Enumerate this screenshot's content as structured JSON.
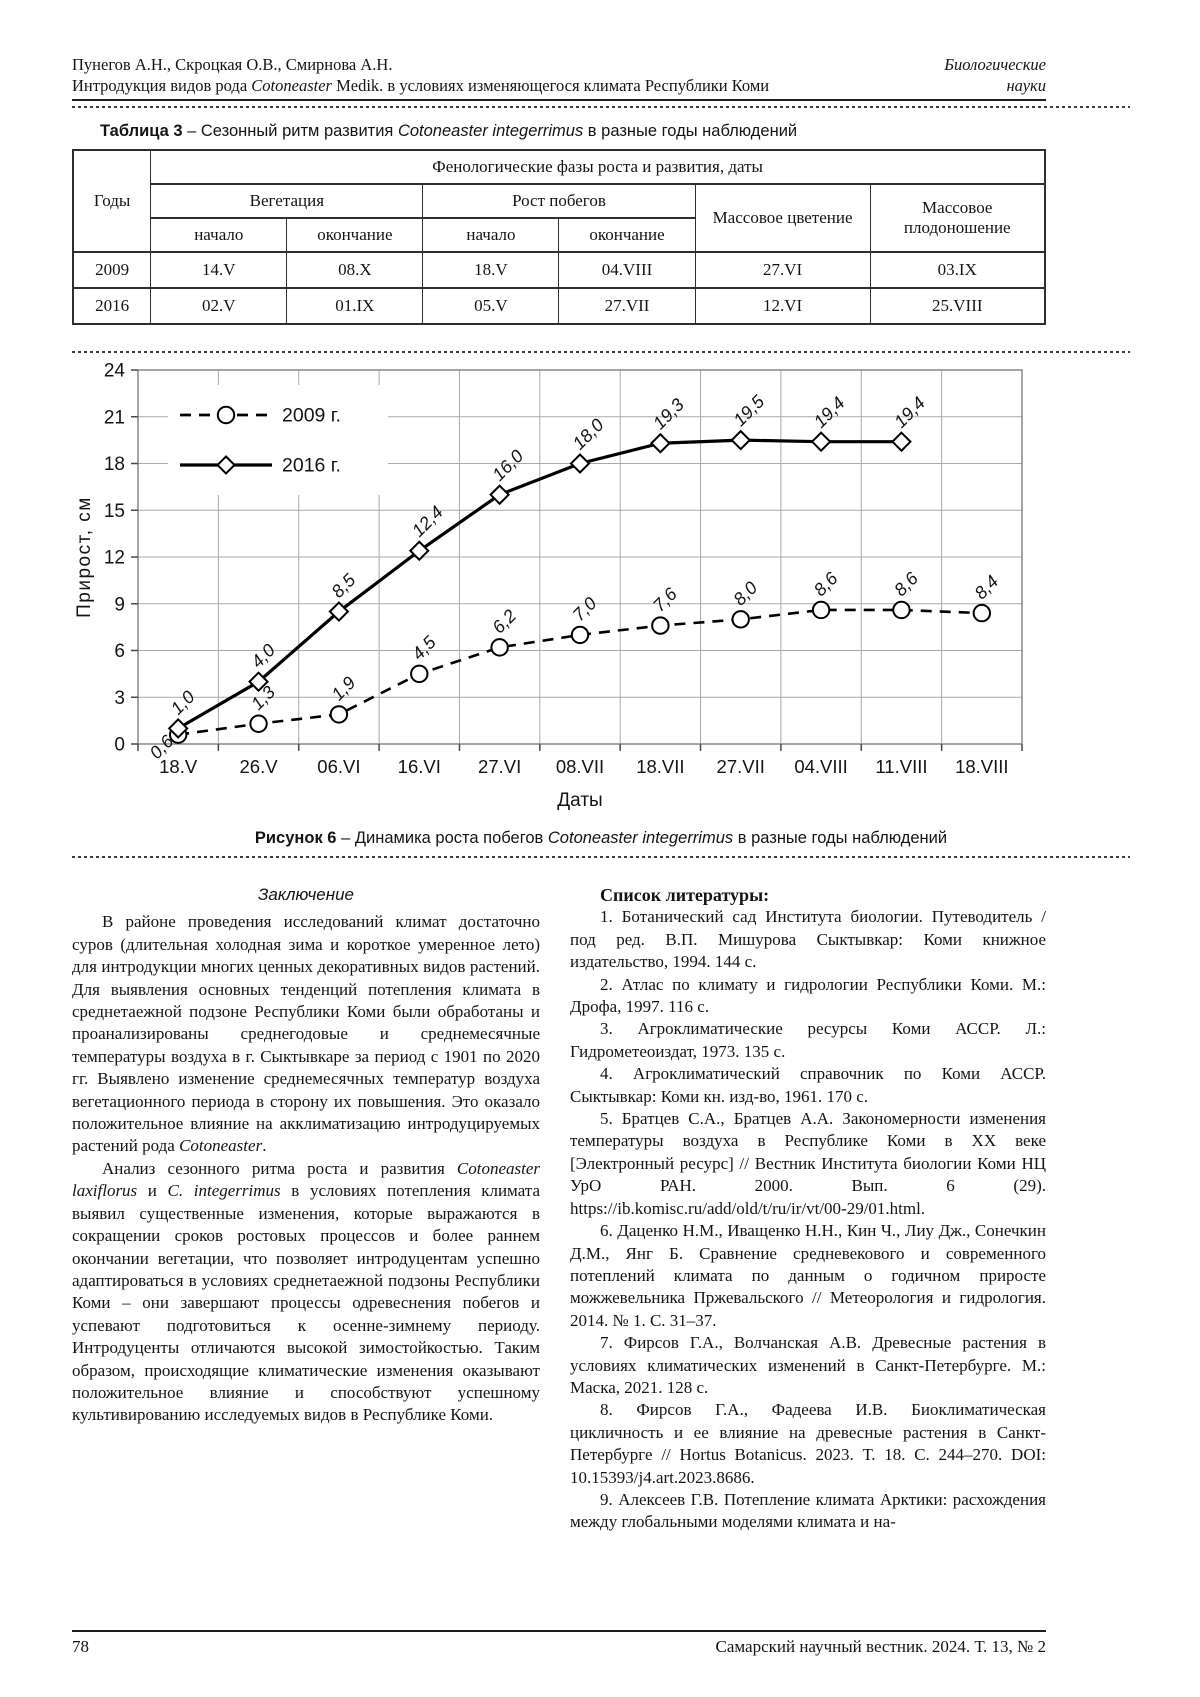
{
  "header": {
    "authors": "Пунегов А.Н., Скроцкая О.В., Смирнова А.Н.",
    "article_title": [
      {
        "t": "Интродукция видов рода "
      },
      {
        "t": "Cotoneaster",
        "s": "i"
      },
      {
        "t": " Medik. в условиях изменяющегося климата Республики Коми"
      }
    ],
    "section_line1": "Биологические",
    "section_line2": "науки"
  },
  "table": {
    "title": [
      {
        "t": "Таблица 3",
        "s": "b"
      },
      {
        "t": " – Сезонный ритм развития "
      },
      {
        "t": "Cotoneaster integerrimus",
        "s": "i"
      },
      {
        "t": " в разные годы наблюдений"
      }
    ],
    "col_year": "Годы",
    "phases_header": "Фенологические фазы роста и развития, даты",
    "vegetation": "Вегетация",
    "shoot_growth": "Рост побегов",
    "mass_flowering": "Массовое цветение",
    "mass_fruiting": "Массовое плодоношение",
    "start_label": "начало",
    "end_label": "окончание",
    "rows": [
      {
        "year": "2009",
        "cells": [
          "14.V",
          "08.X",
          "18.V",
          "04.VIII",
          "27.VI",
          "03.IX"
        ]
      },
      {
        "year": "2016",
        "cells": [
          "02.V",
          "01.IX",
          "05.V",
          "27.VII",
          "12.VI",
          "25.VIII"
        ]
      }
    ]
  },
  "chart_data": {
    "type": "line",
    "categories": [
      "18.V",
      "26.V",
      "06.VI",
      "16.VI",
      "27.VI",
      "08.VII",
      "18.VII",
      "27.VII",
      "04.VIII",
      "11.VIII",
      "18.VIII"
    ],
    "series": [
      {
        "name": "2009 г.",
        "marker": "circle",
        "line_style": "dashed",
        "values": [
          0.6,
          1.3,
          1.9,
          4.5,
          6.2,
          7.0,
          7.6,
          8.0,
          8.6,
          8.6,
          8.4
        ],
        "labels": [
          "0,6",
          "1,3",
          "1,9",
          "4,5",
          "6,2",
          "7,0",
          "7,6",
          "8,0",
          "8,6",
          "8,6",
          "8,4"
        ]
      },
      {
        "name": "2016 г.",
        "marker": "diamond",
        "line_style": "solid",
        "values": [
          1.0,
          4.0,
          8.5,
          12.4,
          16.0,
          18.0,
          19.3,
          19.5,
          19.4,
          19.4
        ],
        "labels": [
          "1,0",
          "4,0",
          "8,5",
          "12,4",
          "16,0",
          "18,0",
          "19,3",
          "19,5",
          "19,4",
          "19,4"
        ]
      }
    ],
    "title": "",
    "xlabel": "Даты",
    "ylabel": "Прирост,  см",
    "ylim": [
      0,
      24
    ],
    "ytick_step": 3,
    "grid": true,
    "legend_position": "top-left",
    "colors": {
      "line": "#000000",
      "grid": "#a9a9a9",
      "frame": "#888888",
      "marker_fill": "#ffffff"
    }
  },
  "figure": {
    "caption": [
      {
        "t": "Рисунок 6",
        "s": "b"
      },
      {
        "t": " – Динамика роста побегов "
      },
      {
        "t": "Cotoneaster integerrimus",
        "s": "i"
      },
      {
        "t": " в разные годы наблюдений"
      }
    ]
  },
  "conclusion": {
    "heading": "Заключение",
    "paragraphs": [
      [
        {
          "t": "В районе проведения исследований климат достаточно суров (длительная холодная зима и короткое умеренное лето) для интродукции многих ценных декоративных видов растений. Для выявления основных тенденций потепления климата в среднетаежной подзоне Республики Коми были обработаны и проанализированы среднегодовые и среднемесячные температуры воздуха в г. Сыктывкаре за период с 1901 по 2020 гг. Выявлено изменение среднемесячных температур воздуха вегетационного периода в сторону их повышения. Это оказало положительное влияние на акклиматизацию интродуцируемых растений рода "
        },
        {
          "t": "Cotoneaster",
          "s": "i"
        },
        {
          "t": "."
        }
      ],
      [
        {
          "t": "Анализ сезонного ритма роста и развития "
        },
        {
          "t": "Cotoneaster laxiflorus",
          "s": "i"
        },
        {
          "t": " и "
        },
        {
          "t": "C. integerrimus",
          "s": "i"
        },
        {
          "t": " в условиях потепления климата выявил существенные изменения, которые выражаются в сокращении сроков ростовых процессов и более раннем окончании вегетации, что позволяет интродуцентам успешно адаптироваться в условиях среднетаежной подзоны Республики Коми – они завершают процессы одревеснения побегов и успевают подготовиться к осенне-зимнему периоду. Интродуценты отличаются высокой зимостойкостью. Таким образом, происходящие климатические изменения оказывают положительное влияние и способствуют успешному культивированию исследуемых видов в Республике Коми."
        }
      ]
    ]
  },
  "references": {
    "heading": "Список литературы:",
    "items": [
      "1. Ботанический сад Института биологии. Путеводитель / под ред. В.П. Мишурова Сыктывкар: Коми книжное издательство, 1994. 144 с.",
      "2. Атлас по климату и гидрологии Республики Коми. М.: Дрофа, 1997. 116 с.",
      "3. Агроклиматические ресурсы Коми АССР. Л.: Гидрометеоиздат, 1973. 135 с.",
      "4. Агроклиматический справочник по Коми АССР. Сыктывкар: Коми кн. изд-во, 1961. 170 с.",
      "5. Братцев С.А., Братцев А.А. Закономерности изменения температуры воздуха в Республике Коми в XX веке [Электронный ресурс] // Вестник Института биологии Коми НЦ УрО РАН. 2000. Вып. 6 (29). https://ib.komisc.ru/add/old/t/ru/ir/vt/00-29/01.html.",
      "6. Даценко Н.М., Иващенко Н.Н., Кин Ч., Лиу Дж., Сонечкин Д.М., Янг Б. Сравнение средневекового и современного потеплений климата по данным о годичном приросте можжевельника Пржевальского // Метеорология и гидрология. 2014. № 1. С. 31–37.",
      "7. Фирсов Г.А., Волчанская А.В. Древесные растения в условиях климатических изменений в Санкт-Петербурге. М.: Маска, 2021. 128 с.",
      "8. Фирсов Г.А., Фадеева И.В. Биоклиматическая цикличность и ее влияние на древесные растения в Санкт-Петербурге // Hortus Botanicus. 2023. Т. 18. С. 244–270. DOI: 10.15393/j4.art.2023.8686.",
      "9. Алексеев Г.В. Потепление климата Арктики: расхождения между глобальными моделями климата и на-"
    ]
  },
  "footer": {
    "page_number": "78",
    "journal_ref": "Самарский научный вестник. 2024. Т. 13, № 2"
  }
}
